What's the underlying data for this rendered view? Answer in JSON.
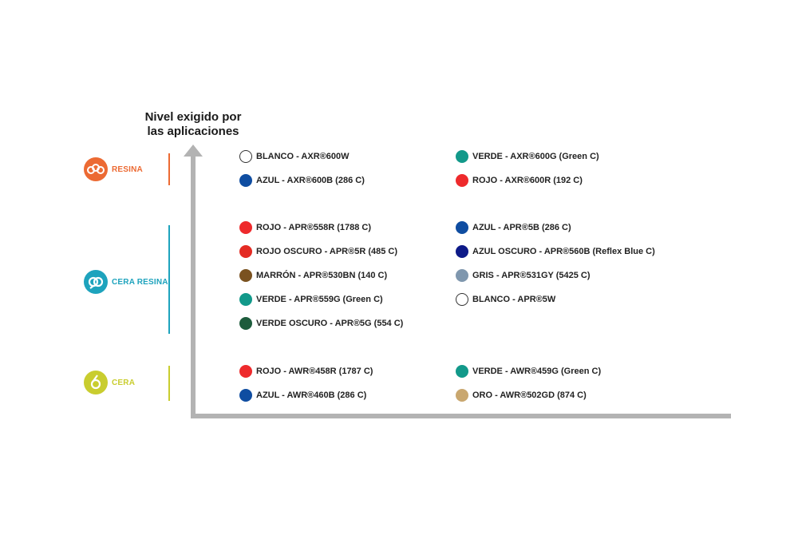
{
  "axis": {
    "title_line1": "Nivel exigido por",
    "title_line2": "las aplicaciones",
    "color": "#b3b3b3"
  },
  "categories": [
    {
      "name": "RESINA",
      "color": "#ec6a33",
      "icon": "resina-logo-icon",
      "items": [
        {
          "label": "BLANCO - AXR®600W",
          "color": "#ffffff",
          "outline": true
        },
        {
          "label": "VERDE - AXR®600G (Green C)",
          "color": "#12998a"
        },
        {
          "label": "AZUL - AXR®600B (286 C)",
          "color": "#0f4da1"
        },
        {
          "label": "ROJO - AXR®600R (192 C)",
          "color": "#ee2a2c"
        }
      ]
    },
    {
      "name": "CERA RESINA",
      "color": "#1ea3bd",
      "icon": "cera-resina-logo-icon",
      "items": [
        {
          "label": "ROJO - APR®558R (1788 C)",
          "color": "#ee2a2c"
        },
        {
          "label": "AZUL - APR®5B (286 C)",
          "color": "#0f4da1"
        },
        {
          "label": "ROJO OSCURO - APR®5R (485 C)",
          "color": "#e42b23"
        },
        {
          "label": "AZUL OSCURO - APR®560B (Reflex Blue C)",
          "color": "#0d1a88"
        },
        {
          "label": "MARRÓN - APR®530BN (140 C)",
          "color": "#7a5220"
        },
        {
          "label": "GRIS - APR®531GY (5425 C)",
          "color": "#7f97ae"
        },
        {
          "label": "VERDE - APR®559G (Green C)",
          "color": "#12998a"
        },
        {
          "label": "BLANCO - APR®5W",
          "color": "#ffffff",
          "outline": true
        },
        {
          "label": "VERDE OSCURO - APR®5G (554 C)",
          "color": "#1d5c3c"
        }
      ]
    },
    {
      "name": "CERA",
      "color": "#c9cd2f",
      "icon": "cera-logo-icon",
      "items": [
        {
          "label": "ROJO - AWR®458R (1787 C)",
          "color": "#ee2a2c"
        },
        {
          "label": "VERDE - AWR®459G (Green C)",
          "color": "#12998a"
        },
        {
          "label": "AZUL - AWR®460B (286 C)",
          "color": "#0f4da1"
        },
        {
          "label": "ORO - AWR®502GD (874 C)",
          "color": "#c9a76f"
        }
      ]
    }
  ]
}
